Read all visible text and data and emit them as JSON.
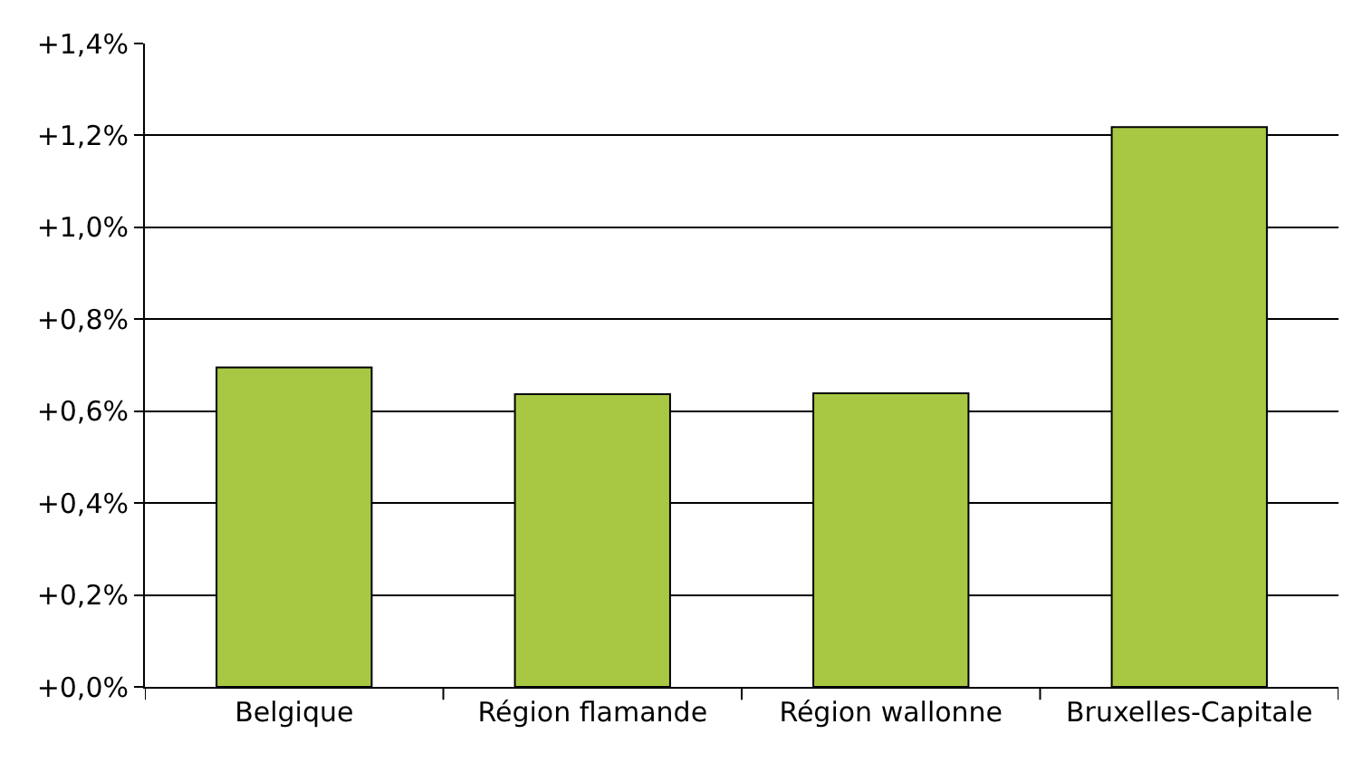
{
  "chart_data": {
    "type": "bar",
    "categories": [
      "Belgique",
      "Région flamande",
      "Région wallonne",
      "Bruxelles-Capitale"
    ],
    "values": [
      0.695,
      0.637,
      0.639,
      1.218
    ],
    "color": "#a8c844",
    "ylim": [
      0,
      1.4
    ],
    "yticks": [
      {
        "value": 0,
        "label": "+0,0%"
      },
      {
        "value": 0.2,
        "label": "+0,2%"
      },
      {
        "value": 0.4,
        "label": "+0,4%"
      },
      {
        "value": 0.6,
        "label": "+0,6%"
      },
      {
        "value": 0.8,
        "label": "+0,8%"
      },
      {
        "value": 1.0,
        "label": "+1,0%"
      },
      {
        "value": 1.2,
        "label": "+1,2%"
      },
      {
        "value": 1.4,
        "label": "+1,4%"
      }
    ],
    "grid": "y"
  }
}
